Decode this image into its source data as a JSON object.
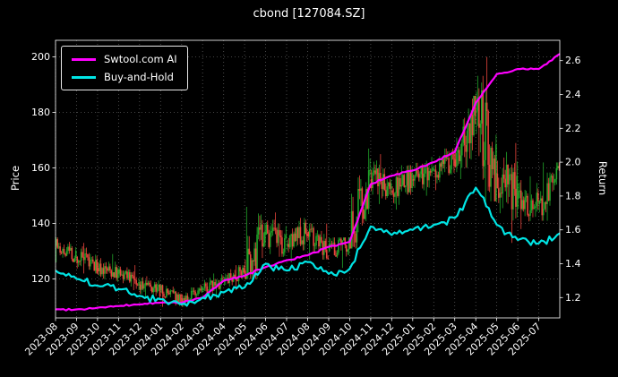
{
  "title": "cbond [127084.SZ]",
  "left_axis_label": "Price",
  "right_axis_label": "Return",
  "legend": [
    {
      "label": "Swtool.com AI",
      "color": "#ff00ff"
    },
    {
      "label": "Buy-and-Hold",
      "color": "#00e5e5"
    }
  ],
  "colors": {
    "background": "#000000",
    "text": "#ffffff",
    "grid": "#5a5a5a",
    "spine": "#ffffff",
    "up": "#21a62a",
    "down": "#e8453c",
    "ai_line": "#ff00ff",
    "bh_line": "#00e5e5"
  },
  "chart_data": {
    "type": "candlestick+line",
    "title": "cbond [127084.SZ]",
    "xlabel": "",
    "ylabel_left": "Price",
    "ylabel_right": "Return",
    "grid": true,
    "legend_position": "upper left",
    "x_categories": [
      "2023-08",
      "2023-09",
      "2023-10",
      "2023-11",
      "2023-12",
      "2024-01",
      "2024-02",
      "2024-03",
      "2024-04",
      "2024-05",
      "2024-06",
      "2024-07",
      "2024-08",
      "2024-09",
      "2024-10",
      "2024-11",
      "2024-12",
      "2025-01",
      "2025-02",
      "2025-03",
      "2025-04",
      "2025-05",
      "2025-06",
      "2025-07"
    ],
    "price_ticks": [
      120,
      140,
      160,
      180,
      200
    ],
    "price_range": [
      106,
      206
    ],
    "return_ticks": [
      1.2,
      1.4,
      1.6,
      1.8,
      2.0,
      2.2,
      2.4,
      2.6
    ],
    "return_range": [
      1.08,
      2.72
    ],
    "monthly_ohlc": [
      {
        "month": "2023-08",
        "open": 132,
        "high": 135,
        "low": 126,
        "close": 128
      },
      {
        "month": "2023-09",
        "open": 128,
        "high": 133,
        "low": 122,
        "close": 124
      },
      {
        "month": "2023-10",
        "open": 124,
        "high": 129,
        "low": 119,
        "close": 122
      },
      {
        "month": "2023-11",
        "open": 122,
        "high": 125,
        "low": 116,
        "close": 118
      },
      {
        "month": "2023-12",
        "open": 118,
        "high": 121,
        "low": 113,
        "close": 116
      },
      {
        "month": "2024-01",
        "open": 116,
        "high": 118,
        "low": 110,
        "close": 113
      },
      {
        "month": "2024-02",
        "open": 113,
        "high": 118,
        "low": 110,
        "close": 116
      },
      {
        "month": "2024-03",
        "open": 116,
        "high": 122,
        "low": 113,
        "close": 119
      },
      {
        "month": "2024-04",
        "open": 119,
        "high": 125,
        "low": 116,
        "close": 123
      },
      {
        "month": "2024-05",
        "open": 123,
        "high": 146,
        "low": 120,
        "close": 136
      },
      {
        "month": "2024-06",
        "open": 136,
        "high": 144,
        "low": 128,
        "close": 132
      },
      {
        "month": "2024-07",
        "open": 132,
        "high": 142,
        "low": 126,
        "close": 137
      },
      {
        "month": "2024-08",
        "open": 137,
        "high": 140,
        "low": 127,
        "close": 130
      },
      {
        "month": "2024-09",
        "open": 130,
        "high": 135,
        "low": 124,
        "close": 133
      },
      {
        "month": "2024-10",
        "open": 134,
        "high": 167,
        "low": 131,
        "close": 156
      },
      {
        "month": "2024-11",
        "open": 156,
        "high": 165,
        "low": 147,
        "close": 152
      },
      {
        "month": "2024-12",
        "open": 152,
        "high": 161,
        "low": 145,
        "close": 156
      },
      {
        "month": "2025-01",
        "open": 156,
        "high": 164,
        "low": 150,
        "close": 159
      },
      {
        "month": "2025-02",
        "open": 159,
        "high": 167,
        "low": 152,
        "close": 163
      },
      {
        "month": "2025-03",
        "open": 163,
        "high": 186,
        "low": 156,
        "close": 180
      },
      {
        "month": "2025-04",
        "open": 180,
        "high": 200,
        "low": 148,
        "close": 158
      },
      {
        "month": "2025-05",
        "open": 158,
        "high": 169,
        "low": 133,
        "close": 149
      },
      {
        "month": "2025-06",
        "open": 149,
        "high": 157,
        "low": 138,
        "close": 147
      },
      {
        "month": "2025-07",
        "open": 147,
        "high": 162,
        "low": 141,
        "close": 159
      }
    ],
    "series": [
      {
        "name": "Swtool.com AI",
        "axis": "return",
        "color": "#ff00ff",
        "values": [
          1.13,
          1.13,
          1.14,
          1.15,
          1.16,
          1.17,
          1.17,
          1.2,
          1.3,
          1.33,
          1.38,
          1.42,
          1.45,
          1.5,
          1.53,
          1.87,
          1.92,
          1.95,
          2.0,
          2.06,
          2.35,
          2.52,
          2.55,
          2.55,
          2.64
        ]
      },
      {
        "name": "Buy-and-Hold",
        "axis": "return",
        "color": "#00e5e5",
        "values": [
          1.36,
          1.31,
          1.27,
          1.25,
          1.21,
          1.19,
          1.16,
          1.2,
          1.23,
          1.26,
          1.4,
          1.36,
          1.41,
          1.34,
          1.37,
          1.62,
          1.57,
          1.6,
          1.63,
          1.67,
          1.85,
          1.63,
          1.54,
          1.52,
          1.58
        ]
      }
    ]
  }
}
